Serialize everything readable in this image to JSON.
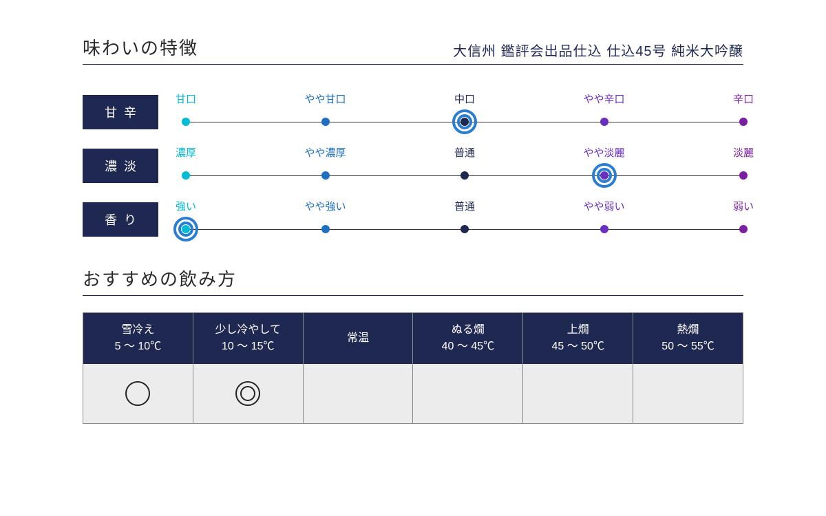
{
  "colors": {
    "navy": "#1f2850",
    "accent_ring": "#2a7dd1",
    "scale_gradient": [
      "#00bcd4",
      "#1f6fc0",
      "#1f2850",
      "#6a2fc0",
      "#7a1fa0"
    ],
    "body_bg": "#ececec",
    "border": "#888888",
    "text_dark": "#2a2a2a"
  },
  "typography": {
    "title_fontsize": 26,
    "product_fontsize": 20,
    "label_fontsize": 18,
    "point_fontsize": 15,
    "table_fontsize": 16
  },
  "header": {
    "section_title": "味わいの特徴",
    "product_name": "大信州 鑑評会出品仕込 仕込45号 純米大吟醸"
  },
  "scales": [
    {
      "label": "甘辛",
      "points": [
        "甘口",
        "やや甘口",
        "中口",
        "やや辛口",
        "辛口"
      ],
      "selected_index": 2
    },
    {
      "label": "濃淡",
      "points": [
        "濃厚",
        "やや濃厚",
        "普通",
        "やや淡麗",
        "淡麗"
      ],
      "selected_index": 3
    },
    {
      "label": "香り",
      "points": [
        "強い",
        "やや強い",
        "普通",
        "やや弱い",
        "弱い"
      ],
      "selected_index": 0
    }
  ],
  "scale_style": {
    "positions_pct": [
      0,
      25,
      50,
      75,
      100
    ],
    "dot_size": 12,
    "ring_outer": 36,
    "ring_inner": 22,
    "ring_stroke": 4,
    "ring_color": "#2a7dd1"
  },
  "temperature": {
    "title": "おすすめの飲み方",
    "columns": [
      {
        "name": "雪冷え",
        "range": "5 ～ 10℃",
        "mark": "single"
      },
      {
        "name": "少し冷やして",
        "range": "10 ～ 15℃",
        "mark": "double"
      },
      {
        "name": "常温",
        "range": "",
        "mark": ""
      },
      {
        "name": "ぬる燗",
        "range": "40 ～ 45℃",
        "mark": ""
      },
      {
        "name": "上燗",
        "range": "45 ～ 50℃",
        "mark": ""
      },
      {
        "name": "熱燗",
        "range": "50 ～ 55℃",
        "mark": ""
      }
    ]
  }
}
